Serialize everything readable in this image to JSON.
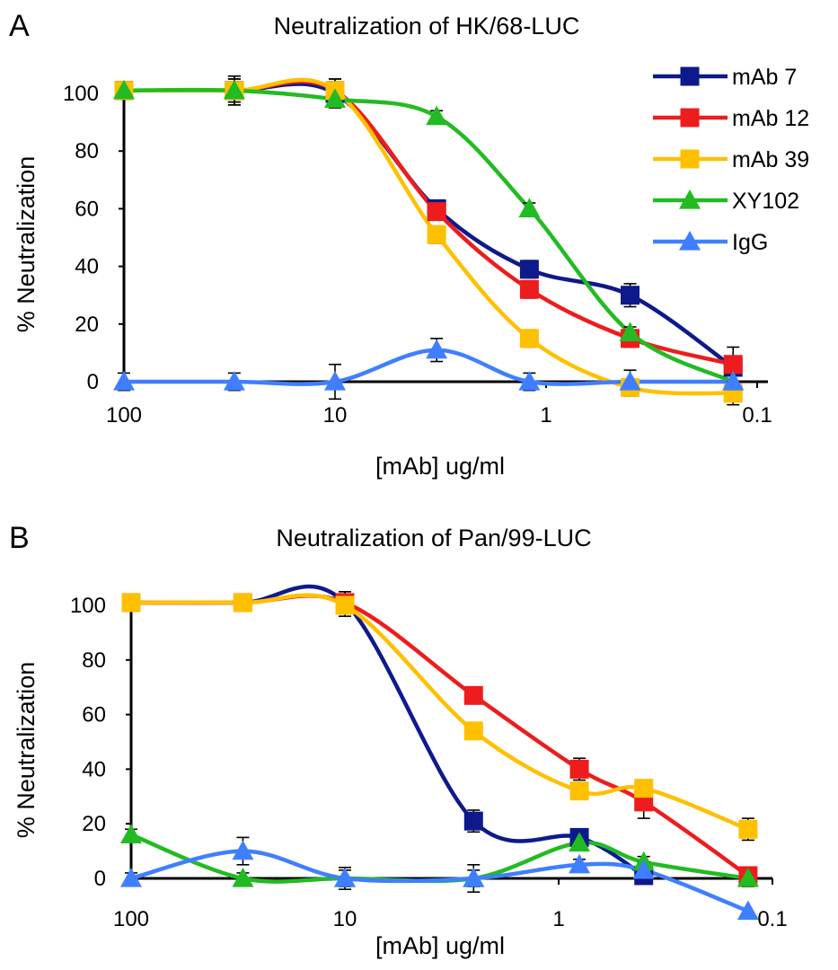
{
  "chart_data": [
    {
      "panel": "A",
      "type": "line",
      "title": "Neutralization of HK/68-LUC",
      "xlabel": "[mAb] ug/ml",
      "ylabel": "% Neutralization",
      "x_scale": "log",
      "x_reversed": true,
      "x_ticks": [
        "100",
        "10",
        "1",
        "0.1"
      ],
      "y_ticks": [
        "0",
        "20",
        "40",
        "60",
        "80",
        "100"
      ],
      "xlim": [
        100,
        0.12
      ],
      "ylim": [
        -5,
        110
      ],
      "x": [
        100,
        30,
        10,
        3.3,
        1.2,
        0.4,
        0.13
      ],
      "legend_position": "top-right",
      "series": [
        {
          "name": "mAb 7",
          "color": "#0d1a8c",
          "marker": "square",
          "values": [
            101,
            101,
            100,
            60,
            39,
            30,
            5
          ],
          "errors": [
            2,
            5,
            4,
            3,
            3,
            4,
            3
          ]
        },
        {
          "name": "mAb 12",
          "color": "#ee1c1c",
          "marker": "square",
          "values": [
            101,
            101,
            101,
            59,
            32,
            15,
            6
          ],
          "errors": [
            2,
            4,
            4,
            3,
            3,
            3,
            6
          ]
        },
        {
          "name": "mAb 39",
          "color": "#ffc000",
          "marker": "square",
          "values": [
            101,
            101,
            101,
            51,
            15,
            -2,
            -4
          ],
          "errors": [
            2,
            5,
            4,
            3,
            3,
            3,
            4
          ]
        },
        {
          "name": "XY102",
          "color": "#22bb22",
          "marker": "triangle",
          "values": [
            101,
            101,
            98,
            92,
            60,
            17,
            0
          ],
          "errors": [
            2,
            4,
            3,
            2,
            2,
            2,
            2
          ]
        },
        {
          "name": "IgG",
          "color": "#3f7fff",
          "marker": "triangle",
          "values": [
            0,
            0,
            0,
            11,
            0,
            0,
            0
          ],
          "errors": [
            3,
            3,
            6,
            4,
            3,
            4,
            3
          ]
        }
      ]
    },
    {
      "panel": "B",
      "type": "line",
      "title": "Neutralization of Pan/99-LUC",
      "xlabel": "[mAb] ug/ml",
      "ylabel": "% Neutralization",
      "x_scale": "log",
      "x_reversed": true,
      "x_ticks": [
        "100",
        "10",
        "1",
        "0.1"
      ],
      "y_ticks": [
        "0",
        "20",
        "40",
        "60",
        "80",
        "100"
      ],
      "xlim": [
        100,
        0.11
      ],
      "ylim": [
        -5,
        110
      ],
      "x": [
        100,
        30,
        10,
        2.5,
        0.8,
        0.4,
        0.13
      ],
      "series": [
        {
          "name": "mAb 7",
          "color": "#0d1a8c",
          "marker": "square",
          "values": [
            101,
            101,
            101,
            21,
            15,
            1,
            null
          ],
          "errors": [
            3,
            3,
            4,
            4,
            2,
            3,
            0
          ]
        },
        {
          "name": "mAb 12",
          "color": "#ee1c1c",
          "marker": "square",
          "values": [
            101,
            101,
            101,
            67,
            40,
            28,
            1
          ],
          "errors": [
            3,
            3,
            4,
            2,
            4,
            6,
            3
          ]
        },
        {
          "name": "mAb 39",
          "color": "#ffc000",
          "marker": "square",
          "values": [
            101,
            101,
            100,
            54,
            32,
            33,
            18
          ],
          "errors": [
            3,
            3,
            4,
            3,
            3,
            3,
            4
          ]
        },
        {
          "name": "XY102",
          "color": "#22bb22",
          "marker": "triangle",
          "values": [
            16,
            0,
            0,
            0,
            13,
            6,
            0
          ],
          "errors": [
            2,
            2,
            3,
            3,
            2,
            2,
            3
          ]
        },
        {
          "name": "IgG",
          "color": "#3f7fff",
          "marker": "triangle",
          "values": [
            0,
            10,
            0,
            0,
            5,
            3,
            -12
          ],
          "errors": [
            2,
            5,
            4,
            5,
            2,
            3,
            0
          ]
        }
      ]
    }
  ]
}
